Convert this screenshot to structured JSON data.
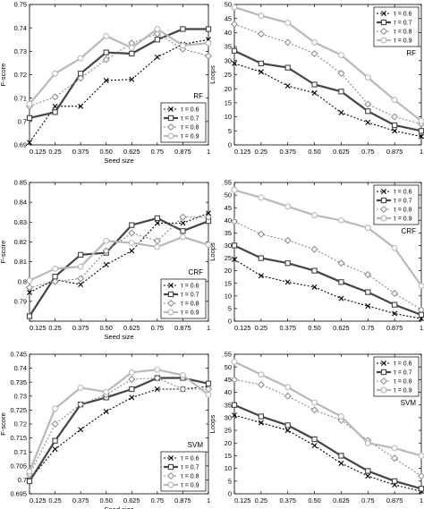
{
  "figure": {
    "x_tick_labels": [
      "0.125",
      "0.25",
      "0.375",
      "0.50",
      "0.625",
      "0.75",
      "0.875",
      "1"
    ],
    "legend_labels": [
      "τ = 0.6",
      "τ = 0.7",
      "τ = 0.8",
      "τ = 0.9"
    ],
    "series_styles": [
      {
        "color": "#000000",
        "dash": "2,2",
        "marker": "x",
        "width": 1.1
      },
      {
        "color": "#444444",
        "dash": "",
        "marker": "square",
        "width": 2.2
      },
      {
        "color": "#888888",
        "dash": "2,2",
        "marker": "diamond",
        "width": 1.1
      },
      {
        "color": "#b8b8b8",
        "dash": "",
        "marker": "circle",
        "width": 2.2
      }
    ]
  },
  "chart_data": [
    {
      "type": "line",
      "panel_label": "RF",
      "xlabel": "Seed size",
      "ylabel": "F-score",
      "x": [
        0.125,
        0.25,
        0.375,
        0.5,
        0.625,
        0.75,
        0.875,
        1
      ],
      "ylim": [
        0.69,
        0.75
      ],
      "yticks": [
        0.69,
        0.7,
        0.71,
        0.72,
        0.73,
        0.74,
        0.75
      ],
      "ytick_labels": [
        "0.69",
        "0.7",
        "0.71",
        "0.72",
        "0.73",
        "0.74",
        "0.75"
      ],
      "label_anchor": "middle",
      "legend": "bottom-right",
      "series": [
        {
          "name": "τ = 0.6",
          "values": [
            0.691,
            0.7065,
            0.7065,
            0.7175,
            0.718,
            0.7275,
            0.733,
            0.735
          ]
        },
        {
          "name": "τ = 0.7",
          "values": [
            0.7015,
            0.704,
            0.7205,
            0.7295,
            0.729,
            0.735,
            0.7395,
            0.7395
          ]
        },
        {
          "name": "τ = 0.8",
          "values": [
            0.7065,
            0.7105,
            0.7185,
            0.7265,
            0.7335,
            0.7375,
            0.731,
            0.728
          ]
        },
        {
          "name": "τ = 0.9",
          "values": [
            0.7075,
            0.7205,
            0.727,
            0.7365,
            0.7315,
            0.7395,
            0.7325,
            0.7335
          ]
        }
      ]
    },
    {
      "type": "line",
      "panel_label": "RF",
      "xlabel": "",
      "ylabel": "Loops",
      "x": [
        0.125,
        0.25,
        0.375,
        0.5,
        0.625,
        0.75,
        0.875,
        1
      ],
      "ylim": [
        0,
        50
      ],
      "yticks": [
        0,
        5,
        10,
        15,
        20,
        25,
        30,
        35,
        40,
        45,
        50
      ],
      "ytick_labels": [
        "0",
        "5",
        "10",
        "15",
        "20",
        "25",
        "30",
        "35",
        "40",
        "45",
        "50"
      ],
      "label_anchor": "top",
      "legend": "top-right",
      "series": [
        {
          "name": "τ = 0.6",
          "values": [
            29,
            26,
            21,
            18.5,
            11.5,
            8,
            5,
            3
          ]
        },
        {
          "name": "τ = 0.7",
          "values": [
            33.5,
            29,
            27.5,
            21.5,
            19,
            12,
            7,
            5
          ]
        },
        {
          "name": "τ = 0.8",
          "values": [
            43,
            39.5,
            36.5,
            32.5,
            25.5,
            14.5,
            10,
            7.5
          ]
        },
        {
          "name": "τ = 0.9",
          "values": [
            49,
            46,
            43.5,
            36.5,
            32,
            24,
            16,
            8.5
          ]
        }
      ]
    },
    {
      "type": "line",
      "panel_label": "CRF",
      "xlabel": "Seed size",
      "ylabel": "F-score",
      "x": [
        0.125,
        0.25,
        0.375,
        0.5,
        0.625,
        0.75,
        0.875,
        1
      ],
      "ylim": [
        0.78,
        0.85
      ],
      "yticks": [
        0.78,
        0.79,
        0.8,
        0.81,
        0.82,
        0.83,
        0.84,
        0.85
      ],
      "ytick_labels": [
        "",
        "0.79",
        "0.8",
        "0.81",
        "0.82",
        "0.83",
        "0.84",
        "0.85"
      ],
      "label_anchor": "middle",
      "legend": "bottom-right",
      "series": [
        {
          "name": "τ = 0.6",
          "values": [
            0.7945,
            0.801,
            0.7985,
            0.8085,
            0.8155,
            0.8295,
            0.8295,
            0.8345
          ]
        },
        {
          "name": "τ = 0.7",
          "values": [
            0.7825,
            0.8025,
            0.8135,
            0.8145,
            0.8285,
            0.832,
            0.8255,
            0.8305
          ]
        },
        {
          "name": "τ = 0.8",
          "values": [
            0.797,
            0.8,
            0.8015,
            0.8155,
            0.8245,
            0.8205,
            0.8325,
            0.8325
          ]
        },
        {
          "name": "τ = 0.9",
          "values": [
            0.8005,
            0.8065,
            0.8075,
            0.8205,
            0.8195,
            0.8175,
            0.8225,
            0.8185
          ]
        }
      ]
    },
    {
      "type": "line",
      "panel_label": "CRF",
      "xlabel": "",
      "ylabel": "Loops",
      "x": [
        0.125,
        0.25,
        0.375,
        0.5,
        0.625,
        0.75,
        0.875,
        1
      ],
      "ylim": [
        0,
        55
      ],
      "yticks": [
        0,
        5,
        10,
        15,
        20,
        25,
        30,
        35,
        40,
        45,
        50,
        55
      ],
      "ytick_labels": [
        "0",
        "5",
        "10",
        "15",
        "20",
        "25",
        "30",
        "35",
        "40",
        "45",
        "50",
        "55"
      ],
      "label_anchor": "middle",
      "legend": "top-right",
      "series": [
        {
          "name": "τ = 0.6",
          "values": [
            24.5,
            18,
            15.5,
            13.5,
            9,
            6,
            3,
            1
          ]
        },
        {
          "name": "τ = 0.7",
          "values": [
            30,
            25,
            23,
            20,
            15.5,
            11.5,
            6.5,
            2.5
          ]
        },
        {
          "name": "τ = 0.8",
          "values": [
            39.5,
            34.5,
            32,
            28.5,
            23,
            18.5,
            11,
            4.5
          ]
        },
        {
          "name": "τ = 0.9",
          "values": [
            52,
            49,
            45.5,
            42,
            40,
            37,
            29,
            14
          ]
        }
      ]
    },
    {
      "type": "line",
      "panel_label": "SVM",
      "xlabel": "Seed size",
      "ylabel": "F-score",
      "x": [
        0.125,
        0.25,
        0.375,
        0.5,
        0.625,
        0.75,
        0.875,
        1
      ],
      "ylim": [
        0.695,
        0.745
      ],
      "yticks": [
        0.695,
        0.7,
        0.705,
        0.71,
        0.715,
        0.72,
        0.725,
        0.73,
        0.735,
        0.74,
        0.745
      ],
      "ytick_labels": [
        "0.695",
        "0.7",
        "0.705",
        "0.71",
        "0.715",
        "0.72",
        "0.725",
        "0.73",
        "0.735",
        "0.74",
        "0.745"
      ],
      "label_anchor": "middle",
      "legend": "bottom-right",
      "series": [
        {
          "name": "τ = 0.6",
          "values": [
            0.7,
            0.711,
            0.718,
            0.7245,
            0.7295,
            0.7325,
            0.7325,
            0.7335
          ]
        },
        {
          "name": "τ = 0.7",
          "values": [
            0.6995,
            0.714,
            0.727,
            0.7295,
            0.7325,
            0.7365,
            0.7365,
            0.7345
          ]
        },
        {
          "name": "τ = 0.8",
          "values": [
            0.702,
            0.72,
            0.727,
            0.7305,
            0.736,
            0.7365,
            0.7325,
            0.7325
          ]
        },
        {
          "name": "τ = 0.9",
          "values": [
            0.703,
            0.7255,
            0.733,
            0.7315,
            0.7385,
            0.7395,
            0.7375,
            0.7305
          ]
        }
      ]
    },
    {
      "type": "line",
      "panel_label": "SVM",
      "xlabel": "",
      "ylabel": "Loops",
      "x": [
        0.125,
        0.25,
        0.375,
        0.5,
        0.625,
        0.75,
        0.875,
        1
      ],
      "ylim": [
        0,
        55
      ],
      "yticks": [
        0,
        5,
        10,
        15,
        20,
        25,
        30,
        35,
        40,
        45,
        50,
        55
      ],
      "ytick_labels": [
        "0",
        "5",
        "10",
        "15",
        "20",
        "25",
        "30",
        "35",
        "40",
        "45",
        "50",
        "55"
      ],
      "label_anchor": "middle",
      "legend": "top-right",
      "series": [
        {
          "name": "τ = 0.6",
          "values": [
            31,
            28,
            25,
            19,
            12,
            7,
            3.5,
            1
          ]
        },
        {
          "name": "τ = 0.7",
          "values": [
            35,
            30.5,
            27,
            21.5,
            15,
            9,
            5,
            2
          ]
        },
        {
          "name": "τ = 0.8",
          "values": [
            45,
            43,
            38.5,
            33,
            29,
            21,
            14,
            7
          ]
        },
        {
          "name": "τ = 0.9",
          "values": [
            52,
            47,
            42,
            36,
            30.5,
            20,
            18,
            15
          ]
        }
      ]
    }
  ]
}
